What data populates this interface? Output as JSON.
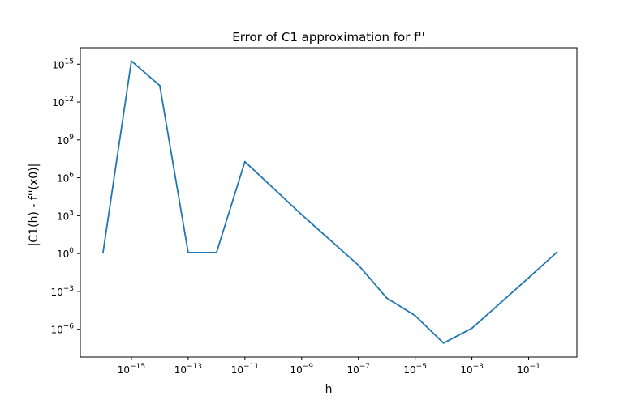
{
  "chart_data": {
    "type": "line",
    "title": "Error of C1 approximation for f''",
    "xlabel": "h",
    "ylabel": "|C1(h) - f''(x0)|",
    "xscale": "log",
    "yscale": "log",
    "xlim_exp": [
      -16.8,
      0.7
    ],
    "ylim_exp": [
      -8.2,
      16.3
    ],
    "x_ticks": [
      {
        "exp": -15,
        "base": "10",
        "sup": "−15"
      },
      {
        "exp": -13,
        "base": "10",
        "sup": "−13"
      },
      {
        "exp": -11,
        "base": "10",
        "sup": "−11"
      },
      {
        "exp": -9,
        "base": "10",
        "sup": "−9"
      },
      {
        "exp": -7,
        "base": "10",
        "sup": "−7"
      },
      {
        "exp": -5,
        "base": "10",
        "sup": "−5"
      },
      {
        "exp": -3,
        "base": "10",
        "sup": "−3"
      },
      {
        "exp": -1,
        "base": "10",
        "sup": "−1"
      }
    ],
    "y_ticks": [
      {
        "exp": -6,
        "base": "10",
        "sup": "−6"
      },
      {
        "exp": -3,
        "base": "10",
        "sup": "−3"
      },
      {
        "exp": 0,
        "base": "10",
        "sup": "0"
      },
      {
        "exp": 3,
        "base": "10",
        "sup": "3"
      },
      {
        "exp": 6,
        "base": "10",
        "sup": "6"
      },
      {
        "exp": 9,
        "base": "10",
        "sup": "9"
      },
      {
        "exp": 12,
        "base": "10",
        "sup": "12"
      },
      {
        "exp": 15,
        "base": "10",
        "sup": "15"
      }
    ],
    "grid": false,
    "legend": "none",
    "series": [
      {
        "color": "#1f77b4",
        "x": [
          1e-16,
          1e-15,
          1e-14,
          1e-13,
          1e-12,
          1e-11,
          1e-10,
          1e-09,
          1e-08,
          1e-07,
          1e-06,
          1e-05,
          0.0001,
          0.001,
          0.01,
          0.1,
          1
        ],
        "y": [
          1.2,
          1800000000000000.0,
          20000000000000.0,
          1.2,
          1.2,
          19000000.0,
          150000.0,
          1200.0,
          12,
          0.12,
          0.0003,
          1.2e-05,
          8e-08,
          1.2e-06,
          0.00012,
          0.012,
          1.3
        ]
      }
    ]
  }
}
